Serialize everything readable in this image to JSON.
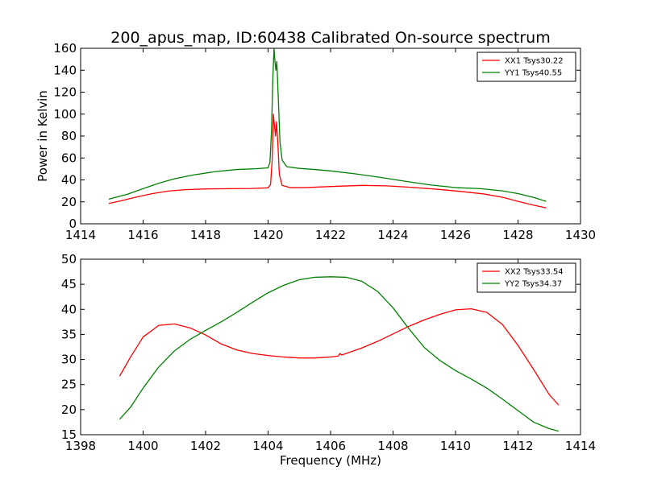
{
  "title": "200_apus_map, ID:60438 Calibrated On-source spectrum",
  "colors": {
    "series_1": "#ff0000",
    "series_2": "#008000",
    "axes": "#000000",
    "background": "#ffffff"
  },
  "chart_data": [
    {
      "type": "line",
      "title": "200_apus_map, ID:60438 Calibrated On-source spectrum",
      "xlabel": "",
      "ylabel": "Power in Kelvin",
      "xlim": [
        1414,
        1430
      ],
      "ylim": [
        0,
        160
      ],
      "xticks": [
        "1414",
        "1416",
        "1418",
        "1420",
        "1422",
        "1424",
        "1426",
        "1428",
        "1430"
      ],
      "yticks": [
        "0",
        "20",
        "40",
        "60",
        "80",
        "100",
        "120",
        "140",
        "160"
      ],
      "grid": false,
      "legend_position": "top-right",
      "series": [
        {
          "name": "XX1 Tsys30.22",
          "color": "#ff0000",
          "x": [
            1414.9,
            1415.3,
            1415.8,
            1416.3,
            1416.8,
            1417.3,
            1418.0,
            1418.8,
            1419.5,
            1420.0,
            1420.08,
            1420.13,
            1420.17,
            1420.21,
            1420.24,
            1420.27,
            1420.31,
            1420.36,
            1420.45,
            1420.7,
            1421.2,
            1422.0,
            1423.0,
            1423.8,
            1424.6,
            1425.4,
            1426.2,
            1426.9,
            1427.5,
            1428.0,
            1428.5,
            1428.9
          ],
          "y": [
            18.5,
            21,
            24.5,
            27.5,
            29.8,
            31,
            31.8,
            32,
            32.2,
            32.8,
            36,
            58,
            100,
            88,
            80,
            93,
            75,
            45,
            35,
            33,
            33,
            34,
            35,
            34.6,
            33.2,
            31.5,
            29.4,
            27.2,
            24.2,
            20.5,
            17,
            14.5
          ]
        },
        {
          "name": "YY1 Tsys40.55",
          "color": "#008000",
          "x": [
            1414.9,
            1415.5,
            1416.0,
            1416.5,
            1417.0,
            1417.6,
            1418.3,
            1419.0,
            1419.6,
            1420.0,
            1420.06,
            1420.11,
            1420.15,
            1420.19,
            1420.22,
            1420.25,
            1420.28,
            1420.32,
            1420.38,
            1420.45,
            1420.6,
            1421.0,
            1421.5,
            1422.0,
            1422.8,
            1423.6,
            1424.4,
            1425.2,
            1426.0,
            1426.8,
            1427.5,
            1428.0,
            1428.5,
            1428.9
          ],
          "y": [
            22.5,
            27,
            32,
            37,
            41,
            44.5,
            47.5,
            49.5,
            50.2,
            51,
            56,
            85,
            130,
            160,
            148,
            140,
            148,
            120,
            75,
            58,
            52,
            50.5,
            49.5,
            48.2,
            45.5,
            42.3,
            38.7,
            35.4,
            33,
            32,
            30,
            27.5,
            24,
            20.5
          ]
        }
      ]
    },
    {
      "type": "line",
      "title": "",
      "xlabel": "Frequency (MHz)",
      "ylabel": "",
      "xlim": [
        1398,
        1414
      ],
      "ylim": [
        15,
        50
      ],
      "xticks": [
        "1398",
        "1400",
        "1402",
        "1404",
        "1406",
        "1408",
        "1410",
        "1412",
        "1414"
      ],
      "yticks": [
        "15",
        "20",
        "25",
        "30",
        "35",
        "40",
        "45",
        "50"
      ],
      "grid": false,
      "legend_position": "top-right",
      "series": [
        {
          "name": "XX2 Tsys33.54",
          "color": "#ff0000",
          "x": [
            1399.25,
            1399.6,
            1400.0,
            1400.5,
            1401.0,
            1401.5,
            1402.0,
            1402.5,
            1403.0,
            1403.5,
            1404.0,
            1404.5,
            1405.0,
            1405.5,
            1406.0,
            1406.25,
            1406.3,
            1406.35,
            1406.5,
            1407.0,
            1407.5,
            1408.0,
            1408.5,
            1409.0,
            1409.5,
            1410.0,
            1410.5,
            1411.0,
            1411.5,
            1412.0,
            1412.5,
            1413.0,
            1413.3
          ],
          "y": [
            26.7,
            30.5,
            34.5,
            36.8,
            37.1,
            36.3,
            34.9,
            33.1,
            31.9,
            31.2,
            30.8,
            30.5,
            30.3,
            30.3,
            30.5,
            30.7,
            31.2,
            30.9,
            31.2,
            32.3,
            33.6,
            35.1,
            36.6,
            37.9,
            39.0,
            39.9,
            40.1,
            39.4,
            37.0,
            32.8,
            28.0,
            23.0,
            20.9
          ]
        },
        {
          "name": "YY2 Tsys34.37",
          "color": "#008000",
          "x": [
            1399.25,
            1399.6,
            1400.0,
            1400.5,
            1401.0,
            1401.5,
            1402.0,
            1402.5,
            1403.0,
            1403.5,
            1404.0,
            1404.5,
            1405.0,
            1405.5,
            1406.0,
            1406.5,
            1407.0,
            1407.5,
            1408.0,
            1408.5,
            1409.0,
            1409.5,
            1410.0,
            1410.5,
            1411.0,
            1411.5,
            1412.0,
            1412.5,
            1413.0,
            1413.3
          ],
          "y": [
            18.1,
            20.5,
            24.3,
            28.5,
            31.7,
            34.0,
            35.8,
            37.5,
            39.4,
            41.4,
            43.3,
            44.8,
            45.9,
            46.4,
            46.5,
            46.4,
            45.6,
            43.6,
            40.3,
            36.2,
            32.4,
            29.8,
            27.8,
            26.1,
            24.3,
            22.1,
            19.8,
            17.5,
            16.2,
            15.7
          ]
        }
      ]
    }
  ]
}
